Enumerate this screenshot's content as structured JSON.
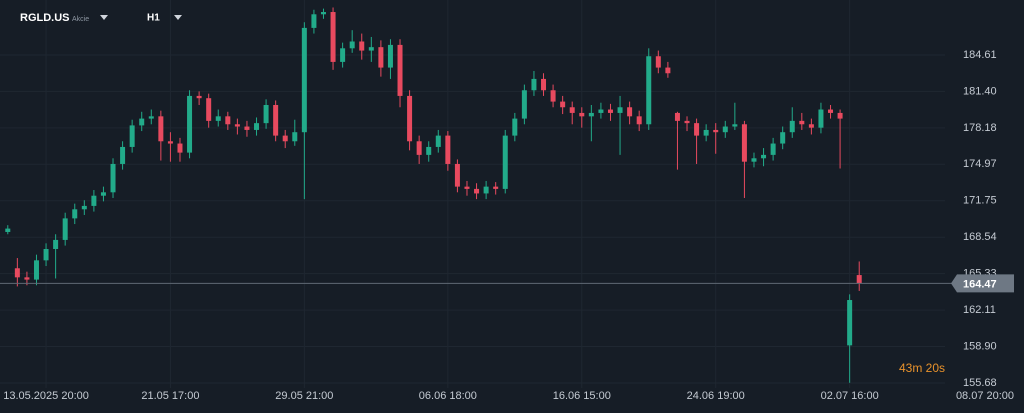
{
  "chart_data": {
    "type": "candlestick",
    "symbol": "RGLD.US",
    "instrument_type": "Akcie",
    "timeframe": "H1",
    "countdown": "43m 20s",
    "axis_end_label": "08.07 20:00",
    "current_price": 164.47,
    "up_color": "#22ab8a",
    "down_color": "#e84a5f",
    "grid": true,
    "ylim": [
      155.24,
      189.46
    ],
    "yticks": [
      184.61,
      {
        "value": 181.4,
        "label": "181.40"
      },
      178.18,
      174.97,
      171.75,
      168.54,
      165.33,
      162.11,
      {
        "value": 158.9,
        "label": "158.90"
      },
      155.68
    ],
    "categories": [
      null,
      null,
      null,
      null,
      "13.05.2025  20:00",
      null,
      null,
      null,
      null,
      null,
      null,
      null,
      null,
      null,
      null,
      null,
      null,
      "21.05  17:00",
      null,
      null,
      null,
      null,
      null,
      null,
      null,
      null,
      null,
      null,
      null,
      null,
      null,
      "29.05  21:00",
      null,
      null,
      null,
      null,
      null,
      null,
      null,
      null,
      null,
      null,
      null,
      null,
      null,
      null,
      "06.06  18:00",
      null,
      null,
      null,
      null,
      null,
      null,
      null,
      null,
      null,
      null,
      null,
      null,
      null,
      "16.06  15:00",
      null,
      null,
      null,
      null,
      null,
      null,
      null,
      null,
      null,
      null,
      null,
      null,
      null,
      "24.06  19:00",
      null,
      null,
      null,
      null,
      null,
      null,
      null,
      null,
      null,
      null,
      null,
      null,
      null,
      "02.07  16:00",
      null
    ],
    "open": [
      169.0,
      165.8,
      165.0,
      164.8,
      166.5,
      167.5,
      168.3,
      170.2,
      171.0,
      171.3,
      172.2,
      172.5,
      175.0,
      176.5,
      178.4,
      179.0,
      179.2,
      177.0,
      176.8,
      176.0,
      181.0,
      180.8,
      178.8,
      179.2,
      178.5,
      178.3,
      178.0,
      178.6,
      180.2,
      177.5,
      177.0,
      177.8,
      187.0,
      188.2,
      188.4,
      184.0,
      185.2,
      185.8,
      185.0,
      185.3,
      183.5,
      185.5,
      181.0,
      177.0,
      175.8,
      176.5,
      177.5,
      175.0,
      173.0,
      172.8,
      172.4,
      173.0,
      172.8,
      177.5,
      179.0,
      181.5,
      182.5,
      181.5,
      180.5,
      180.0,
      179.5,
      179.2,
      179.5,
      179.8,
      179.5,
      180.0,
      179.2,
      178.5,
      184.5,
      183.5,
      179.5,
      178.8,
      178.6,
      177.5,
      178.0,
      177.8,
      178.3,
      178.5,
      175.2,
      175.5,
      175.8,
      176.8,
      177.8,
      178.8,
      178.5,
      178.2,
      179.8,
      179.5,
      159.0,
      165.2
    ],
    "high": [
      169.6,
      166.7,
      165.5,
      167.0,
      168.0,
      168.8,
      170.7,
      171.5,
      171.8,
      172.7,
      173.0,
      175.5,
      177.0,
      178.9,
      179.6,
      179.8,
      179.7,
      177.8,
      177.3,
      181.5,
      181.4,
      181.2,
      179.8,
      179.6,
      179.0,
      178.8,
      179.1,
      180.7,
      180.6,
      178.0,
      178.9,
      187.5,
      188.6,
      188.7,
      188.8,
      185.7,
      186.8,
      186.5,
      186.2,
      185.9,
      186.0,
      186.0,
      181.5,
      177.5,
      177.0,
      178.0,
      177.9,
      175.4,
      173.5,
      173.3,
      173.5,
      173.4,
      178.0,
      179.5,
      182.0,
      183.2,
      183.0,
      182.0,
      181.0,
      180.5,
      180.0,
      180.2,
      180.4,
      180.3,
      181.0,
      180.5,
      179.7,
      185.2,
      185.0,
      184.0,
      179.6,
      179.2,
      179.0,
      178.5,
      178.6,
      178.8,
      180.4,
      178.8,
      176.0,
      176.4,
      177.3,
      178.3,
      180.0,
      179.5,
      179.0,
      180.4,
      180.2,
      179.8,
      163.5,
      166.4
    ],
    "low": [
      168.8,
      164.2,
      164.3,
      164.3,
      166.0,
      164.9,
      167.8,
      169.7,
      170.5,
      170.8,
      171.7,
      172.0,
      174.5,
      176.0,
      177.9,
      178.5,
      175.3,
      175.2,
      175.2,
      175.5,
      180.2,
      178.2,
      178.3,
      178.0,
      177.6,
      177.4,
      177.5,
      178.1,
      177.0,
      176.4,
      176.6,
      171.9,
      186.5,
      187.8,
      183.3,
      183.5,
      184.8,
      184.2,
      184.0,
      182.7,
      182.5,
      180.0,
      176.2,
      175.0,
      175.2,
      176.0,
      174.4,
      172.5,
      172.2,
      171.9,
      171.9,
      172.3,
      172.4,
      177.0,
      178.5,
      181.0,
      181.0,
      180.0,
      179.4,
      178.5,
      178.2,
      177.0,
      179.0,
      178.8,
      175.8,
      178.5,
      177.9,
      178.0,
      183.0,
      182.6,
      174.5,
      177.9,
      175.0,
      177.0,
      175.9,
      177.3,
      178.0,
      172.0,
      174.7,
      174.8,
      175.3,
      176.3,
      177.3,
      178.0,
      177.6,
      177.7,
      179.0,
      174.6,
      155.7,
      163.8
    ],
    "close": [
      169.3,
      165.0,
      164.8,
      166.5,
      167.5,
      168.3,
      170.2,
      171.0,
      171.3,
      172.2,
      172.5,
      175.0,
      176.5,
      178.4,
      179.0,
      179.2,
      177.0,
      176.8,
      176.0,
      181.0,
      180.8,
      178.8,
      179.2,
      178.5,
      178.3,
      178.0,
      178.6,
      180.2,
      177.5,
      177.0,
      177.8,
      187.0,
      188.2,
      188.4,
      184.0,
      185.2,
      185.8,
      185.0,
      185.3,
      183.5,
      185.5,
      181.0,
      177.0,
      175.8,
      176.5,
      177.5,
      175.0,
      173.0,
      172.8,
      172.4,
      173.0,
      172.8,
      177.5,
      179.0,
      181.5,
      182.5,
      181.5,
      180.5,
      180.0,
      179.5,
      179.2,
      179.5,
      179.8,
      179.5,
      180.0,
      179.2,
      178.5,
      184.5,
      183.5,
      183.0,
      178.8,
      178.6,
      177.5,
      178.0,
      177.8,
      178.3,
      178.5,
      175.2,
      175.5,
      175.8,
      176.8,
      177.8,
      178.8,
      178.5,
      178.2,
      179.8,
      179.5,
      179.0,
      163.0,
      164.47
    ]
  }
}
